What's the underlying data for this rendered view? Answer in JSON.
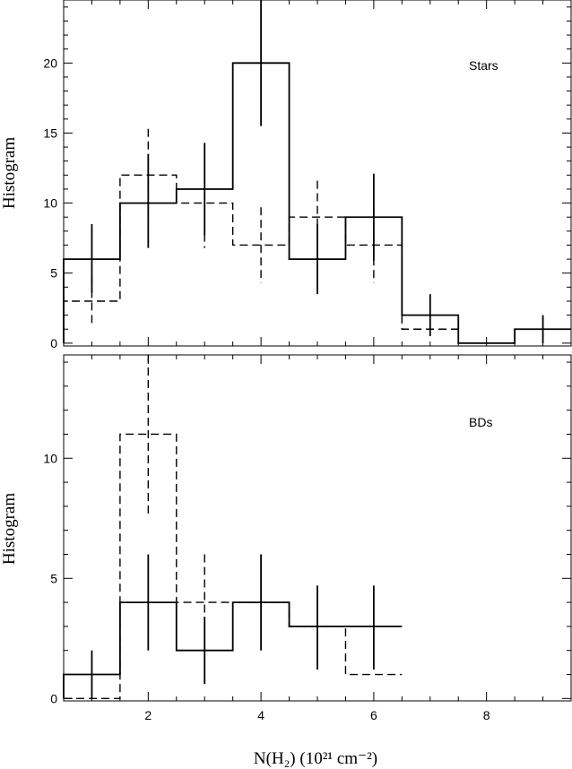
{
  "chart_data": [
    {
      "id": "stars",
      "type": "histogram",
      "annotation": "Stars",
      "ylabel": "Histogram",
      "xlim": [
        0.5,
        9.5
      ],
      "ylim": [
        -0.2,
        24.5
      ],
      "yticks": [
        0,
        5,
        10,
        15,
        20
      ],
      "series": [
        {
          "style": "solid",
          "bins": [
            1,
            2,
            3,
            4,
            5,
            6,
            7,
            8,
            9
          ],
          "values": [
            6,
            10,
            11,
            20,
            6,
            9,
            2,
            0,
            1
          ],
          "error_high": [
            8.5,
            13.5,
            14.3,
            24.8,
            8.5,
            12.1,
            3.5,
            0,
            2.0
          ],
          "error_low": [
            3.6,
            6.8,
            7.7,
            15.5,
            3.5,
            5.9,
            0.5,
            0,
            0
          ]
        },
        {
          "style": "dashed",
          "bins": [
            1,
            2,
            3,
            4,
            5,
            6,
            7
          ],
          "values": [
            3,
            12,
            10,
            7,
            9,
            7,
            1
          ],
          "error_high": [
            4.7,
            15.3,
            13.2,
            9.7,
            11.6,
            9.7,
            1
          ],
          "error_low": [
            1.2,
            8.6,
            6.8,
            4.3,
            6.3,
            4.3,
            1
          ]
        }
      ]
    },
    {
      "id": "bds",
      "type": "histogram",
      "annotation": "BDs",
      "ylabel": "Histogram",
      "xlabel": "N(H₂) (10²¹ cm⁻²)",
      "xlim": [
        0.5,
        9.5
      ],
      "ylim": [
        -0.1,
        14.3
      ],
      "xticks": [
        2,
        4,
        6,
        8
      ],
      "yticks": [
        0,
        5,
        10
      ],
      "series": [
        {
          "style": "solid",
          "bins": [
            1,
            2,
            3,
            4,
            5,
            6
          ],
          "values": [
            1,
            4,
            2,
            4,
            3,
            3
          ],
          "error_high": [
            2.0,
            6.0,
            3.4,
            6.0,
            4.7,
            4.7
          ],
          "error_low": [
            0,
            2.0,
            0.6,
            2.0,
            1.2,
            1.2
          ]
        },
        {
          "style": "dashed",
          "bins": [
            1,
            2,
            3,
            4,
            5,
            6
          ],
          "values": [
            0,
            11,
            4,
            4,
            3,
            1
          ],
          "error_high": [
            0,
            14.3,
            6.0,
            4,
            3,
            1
          ],
          "error_low": [
            0,
            7.7,
            2.0,
            4,
            3,
            1
          ]
        }
      ]
    }
  ]
}
